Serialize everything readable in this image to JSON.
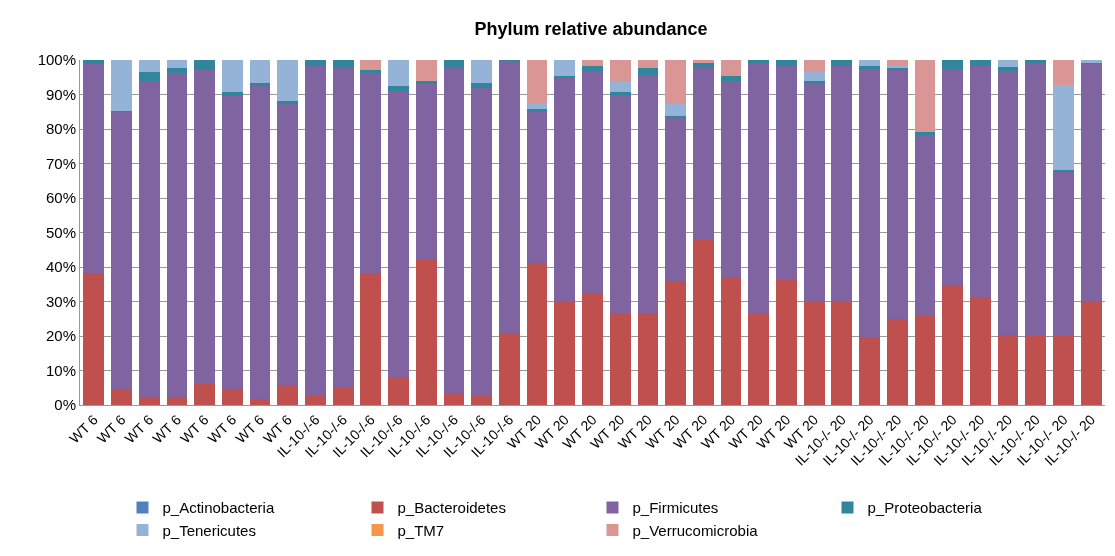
{
  "chart_data": {
    "type": "bar",
    "title": "Phylum relative abundance",
    "stacked": true,
    "grid": "y",
    "legend": "bottom",
    "categories": [
      "WT 6",
      "WT 6",
      "WT 6",
      "WT 6",
      "WT 6",
      "WT 6",
      "WT 6",
      "WT 6",
      "IL-10-/-6",
      "IL-10-/-6",
      "IL-10-/-6",
      "IL-10-/-6",
      "IL-10-/-6",
      "IL-10-/-6",
      "IL-10-/-6",
      "IL-10-/-6",
      "WT 20",
      "WT 20",
      "WT 20",
      "WT 20",
      "WT 20",
      "WT 20",
      "WT 20",
      "WT 20",
      "WT 20",
      "WT 20",
      "WT 20",
      "IL-10-/- 20",
      "IL-10-/- 20",
      "IL-10-/- 20",
      "IL-10-/- 20",
      "IL-10-/- 20",
      "IL-10-/- 20",
      "IL-10-/- 20",
      "IL-10-/- 20",
      "IL-10-/- 20",
      "IL-10-/- 20"
    ],
    "ylim": [
      0,
      100
    ],
    "yticks": [
      {
        "value": 0,
        "label": "0%"
      },
      {
        "value": 10,
        "label": "10%"
      },
      {
        "value": 20,
        "label": "20%"
      },
      {
        "value": 30,
        "label": "30%"
      },
      {
        "value": 40,
        "label": "40%"
      },
      {
        "value": 50,
        "label": "50%"
      },
      {
        "value": 60,
        "label": "60%"
      },
      {
        "value": 70,
        "label": "70%"
      },
      {
        "value": 80,
        "label": "80%"
      },
      {
        "value": 90,
        "label": "90%"
      },
      {
        "value": 100,
        "label": "100%"
      }
    ],
    "series": [
      {
        "name": "p_Actinobacteria",
        "color": "#4f81bd",
        "values": [
          0,
          0,
          0,
          0,
          0,
          0,
          0,
          0,
          0,
          0,
          0,
          0,
          0,
          0,
          0,
          0,
          0,
          0,
          0,
          0,
          0,
          0,
          0,
          0,
          0,
          0,
          0,
          0,
          0,
          0,
          0,
          0,
          0,
          0,
          0,
          0,
          0
        ]
      },
      {
        "name": "p_Bacteroidetes",
        "color": "#c0504d",
        "values": [
          38.3,
          4.3,
          2.4,
          2.4,
          6,
          4.3,
          1.6,
          5.4,
          2.7,
          5.2,
          38.3,
          7.8,
          42.2,
          3.3,
          2.7,
          20.7,
          41.1,
          29.8,
          32.6,
          26.7,
          26.7,
          35.7,
          47.8,
          37.2,
          26.3,
          36.3,
          29.8,
          29.8,
          19.6,
          24.8,
          25.9,
          34.8,
          30.9,
          20.4,
          20.1,
          20,
          29.8
        ]
      },
      {
        "name": "p_Firmicutes",
        "color": "#8064a2",
        "values": [
          60.4,
          80.5,
          91.4,
          93.8,
          91,
          85.4,
          90.8,
          81.9,
          95.5,
          92.4,
          57.9,
          83.3,
          50.8,
          94.3,
          89.1,
          79.1,
          43.9,
          65,
          64.1,
          63.3,
          69,
          47.5,
          49.8,
          56.6,
          72.8,
          62.1,
          63.4,
          68.6,
          77.9,
          72.3,
          52.4,
          62.7,
          67.3,
          76.3,
          79,
          47.4,
          68.9
        ]
      },
      {
        "name": "p_Proteobacteria",
        "color": "#31859c",
        "values": [
          1.3,
          0.4,
          2.7,
          1.6,
          3,
          1.1,
          0.9,
          0.7,
          1.8,
          2.4,
          0.8,
          1.3,
          0.8,
          2.4,
          1.4,
          0.2,
          0.7,
          0.6,
          1.7,
          0.8,
          1.9,
          0.7,
          1.5,
          1.6,
          0.9,
          1.6,
          0.6,
          1.6,
          0.9,
          0.5,
          0.7,
          2.5,
          1.8,
          1.3,
          0.9,
          0.6,
          0.5
        ]
      },
      {
        "name": "p_Tenericutes",
        "color": "#95b3d7",
        "values": [
          0,
          14.8,
          3.5,
          2.2,
          0,
          9.2,
          6.7,
          12,
          0,
          0,
          0,
          7.6,
          0,
          0,
          6.8,
          0,
          1.8,
          4.6,
          0,
          2.7,
          0,
          3.4,
          0,
          0,
          0,
          0,
          2.7,
          0,
          1.6,
          0.8,
          0,
          0,
          0,
          2,
          0,
          24.7,
          0.8
        ]
      },
      {
        "name": "p_TM7",
        "color": "#f79646",
        "values": [
          0,
          0,
          0,
          0,
          0,
          0,
          0,
          0,
          0,
          0,
          0,
          0,
          0,
          0,
          0,
          0,
          0,
          0,
          0,
          0,
          0,
          0,
          0,
          0,
          0,
          0,
          0,
          0,
          0,
          0,
          0,
          0,
          0,
          0,
          0,
          0,
          0
        ]
      },
      {
        "name": "p_Verrucomicrobia",
        "color": "#d99694",
        "values": [
          0,
          0,
          0,
          0,
          0,
          0,
          0,
          0,
          0,
          0,
          3,
          0,
          6.2,
          0,
          0,
          0,
          12.5,
          0,
          1.6,
          6.5,
          2.4,
          12.7,
          0.9,
          4.6,
          0,
          0,
          3.5,
          0,
          0,
          1.6,
          21,
          0,
          0,
          0,
          0,
          7.3,
          0
        ]
      }
    ]
  }
}
